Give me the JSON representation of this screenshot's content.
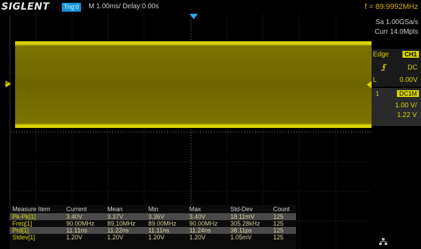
{
  "header": {
    "logo": "SIGLENT",
    "trigger_status": "Trig'd",
    "timebase": "M 1.00ms/ Delay:0.00s",
    "frequency": "f = 89.9992MHz"
  },
  "acquisition": {
    "sample_rate": "Sa 1.00GSa/s",
    "memory_depth": "Curr 14.0Mpts"
  },
  "trigger_panel": {
    "type": "Edge",
    "source": "CH1",
    "slope_icon": "rising-edge-icon",
    "coupling": "DC",
    "level_label": "L",
    "level": "0.00V"
  },
  "channel_panel": {
    "number": "1",
    "coupling": "DC1M",
    "volts_per_div": "1.00 V/",
    "offset": "1.22 V"
  },
  "channel_marker": "1",
  "measurements": {
    "headers": [
      "Measure Item",
      "Current",
      "Mean",
      "Min",
      "Max",
      "Std-Dev",
      "Count"
    ],
    "rows": [
      [
        "Pk-Pk[1]",
        "3.40V",
        "3.37V",
        "3.36V",
        "3.40V",
        "18.11mV",
        "125"
      ],
      [
        "Freq[1]",
        "90.00MHz",
        "89.10MHz",
        "89.00MHz",
        "90.00MHz",
        "305.28kHz",
        "125"
      ],
      [
        "Prd[1]",
        "11.11ns",
        "11.22ns",
        "11.11ns",
        "11.24ns",
        "38.11ps",
        "125"
      ],
      [
        "Stdev[1]",
        "1.20V",
        "1.20V",
        "1.20V",
        "1.20V",
        "1.05mV",
        "125"
      ]
    ]
  },
  "colors": {
    "channel1": "#d8d300",
    "trigger": "#2aa8e0",
    "frequency": "#e0b000"
  }
}
